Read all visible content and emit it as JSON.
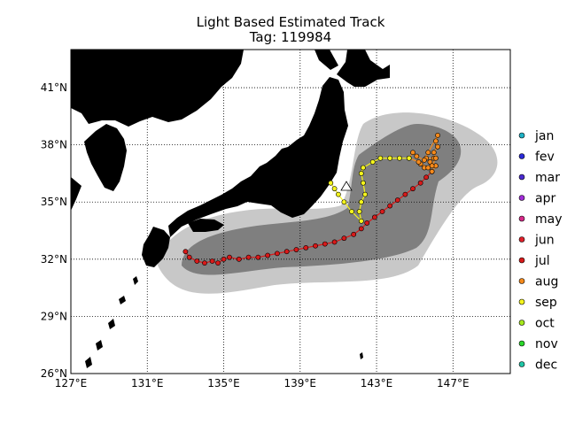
{
  "title": "Light Based Estimated Track",
  "subtitle": "Tag: 119984",
  "chart_data": {
    "type": "map",
    "lon_range": [
      127,
      150
    ],
    "lat_range": [
      26,
      43
    ],
    "lon_ticks": [
      127,
      131,
      135,
      139,
      143,
      147
    ],
    "lat_ticks": [
      26,
      29,
      32,
      35,
      38,
      41
    ],
    "lon_tick_labels": [
      "127°E",
      "131°E",
      "135°E",
      "139°E",
      "143°E",
      "147°E"
    ],
    "lat_tick_labels": [
      "26°N",
      "29°N",
      "32°N",
      "35°N",
      "38°N",
      "41°N"
    ],
    "grid": true,
    "legend_position": "right",
    "legend": [
      {
        "label": "jan",
        "color": "#1fb2c6"
      },
      {
        "label": "fev",
        "color": "#2a2ad8"
      },
      {
        "label": "mar",
        "color": "#4a2ad0"
      },
      {
        "label": "apr",
        "color": "#a12cd8"
      },
      {
        "label": "may",
        "color": "#d82a8a"
      },
      {
        "label": "jun",
        "color": "#e0202a"
      },
      {
        "label": "jul",
        "color": "#d81a1a"
      },
      {
        "label": "aug",
        "color": "#f58a1c"
      },
      {
        "label": "sep",
        "color": "#f5f51c"
      },
      {
        "label": "oct",
        "color": "#a6e81c"
      },
      {
        "label": "nov",
        "color": "#2ad82a"
      },
      {
        "label": "dec",
        "color": "#1fc6a6"
      }
    ],
    "track": [
      {
        "month": "jul",
        "points": [
          [
            133.0,
            32.4
          ],
          [
            133.2,
            32.1
          ],
          [
            133.6,
            31.9
          ],
          [
            134.0,
            31.8
          ],
          [
            134.4,
            31.9
          ],
          [
            134.7,
            31.8
          ],
          [
            135.0,
            32.0
          ],
          [
            135.3,
            32.1
          ],
          [
            135.8,
            32.0
          ],
          [
            136.3,
            32.1
          ],
          [
            136.8,
            32.1
          ],
          [
            137.3,
            32.2
          ],
          [
            137.8,
            32.3
          ],
          [
            138.3,
            32.4
          ],
          [
            138.8,
            32.5
          ],
          [
            139.3,
            32.6
          ],
          [
            139.8,
            32.7
          ],
          [
            140.3,
            32.8
          ],
          [
            140.8,
            32.9
          ],
          [
            141.3,
            33.1
          ],
          [
            141.8,
            33.3
          ],
          [
            142.2,
            33.6
          ],
          [
            142.5,
            33.9
          ],
          [
            142.9,
            34.2
          ],
          [
            143.3,
            34.5
          ],
          [
            143.7,
            34.8
          ],
          [
            144.1,
            35.1
          ],
          [
            144.5,
            35.4
          ],
          [
            144.9,
            35.7
          ],
          [
            145.3,
            36.0
          ],
          [
            145.6,
            36.3
          ],
          [
            145.9,
            36.6
          ]
        ]
      },
      {
        "month": "aug",
        "points": [
          [
            145.9,
            36.6
          ],
          [
            146.1,
            36.9
          ],
          [
            145.8,
            37.1
          ],
          [
            146.0,
            37.3
          ],
          [
            145.6,
            37.3
          ],
          [
            145.3,
            37.0
          ],
          [
            145.5,
            36.8
          ],
          [
            145.9,
            36.9
          ],
          [
            146.1,
            37.3
          ],
          [
            146.0,
            37.6
          ],
          [
            146.2,
            37.9
          ],
          [
            146.1,
            38.2
          ],
          [
            146.2,
            38.5
          ],
          [
            145.7,
            37.6
          ],
          [
            145.5,
            37.2
          ],
          [
            145.1,
            37.4
          ],
          [
            144.9,
            37.6
          ],
          [
            144.7,
            37.3
          ],
          [
            145.2,
            37.1
          ],
          [
            145.7,
            36.8
          ]
        ]
      },
      {
        "month": "sep",
        "points": [
          [
            144.7,
            37.3
          ],
          [
            144.2,
            37.3
          ],
          [
            143.7,
            37.3
          ],
          [
            143.2,
            37.3
          ],
          [
            142.8,
            37.1
          ],
          [
            142.3,
            36.8
          ],
          [
            142.2,
            36.5
          ],
          [
            142.3,
            36.0
          ],
          [
            142.4,
            35.4
          ],
          [
            142.2,
            35.0
          ],
          [
            142.1,
            34.5
          ],
          [
            142.2,
            34.0
          ],
          [
            141.7,
            34.5
          ],
          [
            141.3,
            35.0
          ],
          [
            141.0,
            35.4
          ],
          [
            140.8,
            35.7
          ],
          [
            140.6,
            36.0
          ]
        ]
      }
    ]
  }
}
